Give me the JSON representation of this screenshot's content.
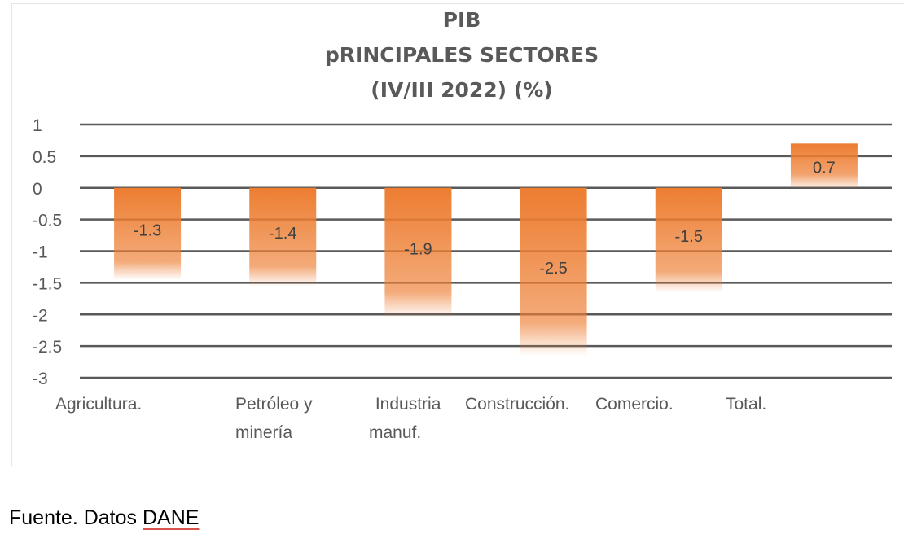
{
  "chart_data": {
    "type": "bar",
    "title": [
      "PIB",
      "pRINCIPALES SECTORES",
      "(IV/III 2022) (%)"
    ],
    "categories": [
      [
        "Agricultura."
      ],
      [
        "Petróleo y",
        "minería"
      ],
      [
        " Industria",
        "manuf."
      ],
      [
        "Construcción."
      ],
      [
        "Comercio."
      ],
      [
        "Total."
      ]
    ],
    "values": [
      -1.3,
      -1.4,
      -1.9,
      -2.5,
      -1.5,
      0.7
    ],
    "data_labels": [
      "-1.3",
      "-1.4",
      "-1.9",
      "-2.5",
      "-1.5",
      "0.7"
    ],
    "yticks": [
      "1",
      "0.5",
      "0",
      "-0.5",
      "-1",
      "-1.5",
      "-2",
      "-2.5",
      "-3"
    ],
    "ylim": [
      -3,
      1
    ],
    "xlabel": "",
    "ylabel": "",
    "grid": true,
    "bar_color": "#ED7D31"
  },
  "source": {
    "prefix": "Fuente. Datos ",
    "link": "DANE"
  }
}
